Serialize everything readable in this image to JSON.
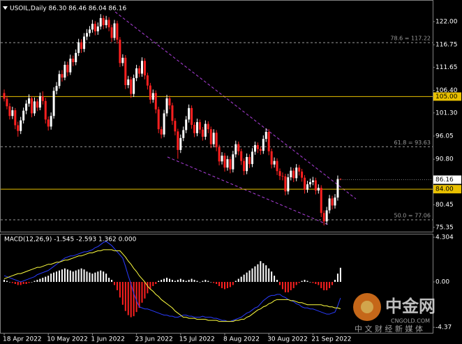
{
  "chart_data": [
    {
      "type": "candlestick",
      "header": "USOIL,Daily  86.30 86.46 86.04 86.16",
      "up_color": "#ffffff",
      "down_color": "#ff2020",
      "ylim": [
        74.21,
        126.11
      ],
      "yticks": [
        {
          "value": 122,
          "label": "122.00"
        },
        {
          "value": 116.75,
          "label": "116.75"
        },
        {
          "value": 111.65,
          "label": "111.65"
        },
        {
          "value": 106.4,
          "label": "106.40"
        },
        {
          "value": 101.3,
          "label": "101.30"
        },
        {
          "value": 96.05,
          "label": "96.05"
        },
        {
          "value": 90.8,
          "label": "90.80"
        },
        {
          "value": 80.45,
          "label": "80.45"
        },
        {
          "value": 75.35,
          "label": "75.35"
        }
      ],
      "levels": [
        {
          "value": 117.22,
          "label": "78.6 = 117.22",
          "style": "dashed",
          "color": "#9a9a9a"
        },
        {
          "value": 105,
          "label": "105.00",
          "style": "solid",
          "color": "#e8c000"
        },
        {
          "value": 93.63,
          "label": "61.8 = 93.63",
          "style": "dashed",
          "color": "#9a9a9a"
        },
        {
          "value": 84,
          "label": "84.00",
          "style": "solid",
          "color": "#e8c000"
        },
        {
          "value": 77.06,
          "label": "50.0 = 77.06",
          "style": "dashed",
          "color": "#9a9a9a"
        }
      ],
      "categories": [
        "18 Apr 2022",
        null,
        null,
        null,
        null,
        null,
        null,
        null,
        null,
        null,
        null,
        null,
        null,
        null,
        null,
        null,
        "10 May 2022",
        null,
        null,
        null,
        null,
        null,
        null,
        null,
        null,
        null,
        null,
        null,
        null,
        null,
        null,
        null,
        "1 Jun 2022",
        null,
        null,
        null,
        null,
        null,
        null,
        null,
        null,
        null,
        null,
        null,
        null,
        null,
        null,
        null,
        "23 Jun 2022",
        null,
        null,
        null,
        null,
        null,
        null,
        null,
        null,
        null,
        null,
        null,
        null,
        null,
        null,
        null,
        "15 Jul 2022",
        null,
        null,
        null,
        null,
        null,
        null,
        null,
        null,
        null,
        null,
        null,
        null,
        null,
        null,
        null,
        "8 Aug 2022",
        null,
        null,
        null,
        null,
        null,
        null,
        null,
        null,
        null,
        null,
        null,
        null,
        null,
        null,
        null,
        "30 Aug 2022",
        null,
        null,
        null,
        null,
        null,
        null,
        null,
        null,
        null,
        null,
        null,
        null,
        null,
        null,
        null,
        "21 Sep 2022",
        null,
        null,
        null,
        null,
        null,
        null,
        null,
        null,
        null,
        null
      ],
      "candles": [
        [
          105.8,
          106.6,
          103.9,
          104.5
        ],
        [
          104.5,
          105.2,
          102.1,
          102.8
        ],
        [
          102.8,
          103.5,
          99.8,
          100.6
        ],
        [
          100.6,
          102.7,
          99.9,
          101.9
        ],
        [
          101.9,
          102.4,
          97.6,
          98.5
        ],
        [
          98.5,
          99.3,
          95.9,
          97.2
        ],
        [
          97.2,
          100.4,
          96.5,
          99.6
        ],
        [
          99.6,
          102.5,
          98.9,
          101.8
        ],
        [
          101.8,
          104.2,
          101.0,
          103.4
        ],
        [
          103.4,
          105.5,
          102.7,
          104.6
        ],
        [
          104.6,
          105.1,
          100.3,
          101.2
        ],
        [
          101.2,
          104.8,
          100.6,
          103.9
        ],
        [
          103.9,
          104.5,
          101.7,
          102.5
        ],
        [
          102.5,
          105.9,
          101.9,
          105.1
        ],
        [
          105.1,
          106.2,
          103.2,
          104.0
        ],
        [
          104.0,
          104.7,
          98.9,
          99.8
        ],
        [
          99.8,
          100.5,
          97.3,
          98.2
        ],
        [
          98.2,
          101.4,
          97.5,
          100.6
        ],
        [
          100.6,
          107.1,
          100.0,
          106.3
        ],
        [
          106.3,
          108.3,
          105.5,
          107.4
        ],
        [
          107.4,
          110.9,
          106.8,
          110.1
        ],
        [
          110.1,
          111.0,
          108.4,
          109.3
        ],
        [
          109.3,
          113.0,
          108.7,
          112.2
        ],
        [
          112.2,
          112.9,
          109.6,
          110.5
        ],
        [
          110.5,
          114.5,
          109.9,
          113.6
        ],
        [
          113.6,
          114.3,
          111.9,
          112.8
        ],
        [
          112.8,
          115.7,
          112.1,
          114.9
        ],
        [
          114.9,
          118.1,
          114.2,
          117.3
        ],
        [
          117.3,
          118.0,
          114.9,
          115.8
        ],
        [
          115.8,
          119.4,
          115.1,
          118.6
        ],
        [
          118.6,
          120.3,
          117.8,
          119.4
        ],
        [
          119.4,
          121.0,
          118.6,
          120.2
        ],
        [
          120.2,
          122.4,
          119.5,
          121.5
        ],
        [
          121.5,
          122.1,
          118.9,
          119.8
        ],
        [
          119.8,
          121.8,
          119.0,
          120.9
        ],
        [
          120.9,
          123.7,
          120.2,
          122.8
        ],
        [
          122.8,
          123.4,
          120.3,
          121.2
        ],
        [
          121.2,
          123.3,
          120.5,
          122.4
        ],
        [
          122.4,
          123.0,
          119.8,
          120.7
        ],
        [
          120.7,
          121.3,
          117.4,
          118.3
        ],
        [
          118.3,
          122.4,
          117.7,
          121.6
        ],
        [
          121.6,
          122.2,
          117.0,
          117.9
        ],
        [
          117.9,
          118.5,
          111.7,
          112.6
        ],
        [
          112.6,
          114.6,
          111.9,
          113.8
        ],
        [
          113.8,
          114.4,
          106.7,
          107.6
        ],
        [
          107.6,
          109.7,
          106.9,
          108.9
        ],
        [
          108.9,
          109.5,
          104.7,
          105.6
        ],
        [
          105.6,
          110.0,
          104.9,
          109.2
        ],
        [
          109.2,
          112.2,
          108.5,
          111.4
        ],
        [
          111.4,
          112.0,
          109.4,
          110.2
        ],
        [
          110.2,
          113.9,
          109.5,
          113.1
        ],
        [
          113.1,
          113.7,
          108.9,
          109.8
        ],
        [
          109.8,
          110.4,
          106.6,
          107.5
        ],
        [
          107.5,
          108.1,
          103.4,
          104.3
        ],
        [
          104.3,
          106.6,
          103.6,
          105.8
        ],
        [
          105.8,
          106.4,
          101.2,
          102.1
        ],
        [
          102.1,
          102.7,
          96.7,
          97.6
        ],
        [
          97.6,
          98.2,
          95.5,
          96.4
        ],
        [
          96.4,
          102.0,
          95.8,
          101.2
        ],
        [
          101.2,
          105.4,
          100.5,
          104.6
        ],
        [
          104.6,
          105.2,
          102.1,
          103.0
        ],
        [
          103.0,
          103.6,
          98.6,
          99.5
        ],
        [
          99.5,
          100.1,
          96.2,
          97.1
        ],
        [
          97.1,
          97.7,
          90.9,
          92.9
        ],
        [
          92.9,
          96.4,
          92.2,
          95.6
        ],
        [
          95.6,
          98.2,
          94.9,
          97.4
        ],
        [
          97.4,
          100.6,
          96.7,
          99.8
        ],
        [
          99.8,
          103.2,
          99.1,
          102.4
        ],
        [
          102.4,
          103.0,
          97.7,
          98.6
        ],
        [
          98.6,
          99.2,
          95.8,
          96.7
        ],
        [
          96.7,
          100.0,
          96.0,
          99.2
        ],
        [
          99.2,
          99.8,
          96.6,
          97.5
        ],
        [
          97.5,
          98.1,
          95.0,
          95.9
        ],
        [
          95.9,
          99.6,
          95.2,
          98.8
        ],
        [
          98.8,
          99.4,
          96.7,
          97.6
        ],
        [
          97.6,
          98.2,
          93.3,
          94.2
        ],
        [
          94.2,
          97.6,
          93.5,
          96.8
        ],
        [
          96.8,
          97.4,
          92.6,
          93.5
        ],
        [
          93.5,
          94.1,
          89.4,
          90.3
        ],
        [
          90.3,
          92.4,
          89.6,
          91.6
        ],
        [
          91.6,
          92.2,
          88.0,
          88.9
        ],
        [
          88.9,
          91.6,
          88.2,
          90.8
        ],
        [
          90.8,
          91.4,
          87.6,
          88.5
        ],
        [
          88.5,
          92.7,
          87.8,
          91.9
        ],
        [
          91.9,
          95.0,
          91.2,
          94.2
        ],
        [
          94.2,
          94.8,
          91.7,
          92.6
        ],
        [
          92.6,
          93.2,
          89.5,
          90.4
        ],
        [
          90.4,
          91.0,
          87.2,
          88.1
        ],
        [
          88.1,
          92.1,
          87.4,
          91.3
        ],
        [
          91.3,
          91.9,
          88.8,
          89.7
        ],
        [
          89.7,
          93.3,
          89.0,
          92.5
        ],
        [
          92.5,
          94.8,
          91.8,
          94.0
        ],
        [
          94.0,
          94.6,
          92.2,
          93.1
        ],
        [
          93.1,
          93.7,
          91.8,
          92.7
        ],
        [
          92.7,
          96.2,
          92.0,
          95.4
        ],
        [
          95.4,
          97.8,
          94.7,
          97.0
        ],
        [
          97.0,
          97.6,
          91.7,
          92.6
        ],
        [
          92.6,
          93.2,
          88.7,
          89.6
        ],
        [
          89.6,
          91.2,
          88.9,
          90.4
        ],
        [
          90.4,
          91.0,
          87.2,
          88.1
        ],
        [
          88.1,
          88.7,
          86.1,
          87.0
        ],
        [
          87.0,
          87.8,
          86.0,
          86.9
        ],
        [
          86.9,
          87.5,
          82.6,
          83.5
        ],
        [
          83.5,
          87.5,
          82.8,
          86.7
        ],
        [
          86.7,
          89.0,
          86.0,
          88.2
        ],
        [
          88.2,
          88.8,
          85.6,
          86.5
        ],
        [
          86.5,
          89.7,
          85.8,
          88.9
        ],
        [
          88.9,
          89.5,
          87.1,
          88.0
        ],
        [
          88.0,
          88.6,
          85.7,
          86.6
        ],
        [
          86.6,
          87.2,
          83.0,
          83.9
        ],
        [
          83.9,
          85.9,
          83.2,
          85.1
        ],
        [
          85.1,
          86.4,
          84.4,
          85.6
        ],
        [
          85.6,
          86.8,
          84.9,
          86.0
        ],
        [
          86.0,
          86.6,
          82.8,
          83.7
        ],
        [
          83.7,
          85.1,
          83.0,
          84.3
        ],
        [
          84.3,
          84.9,
          77.7,
          78.6
        ],
        [
          78.6,
          79.2,
          75.8,
          76.7
        ],
        [
          76.7,
          80.0,
          76.0,
          79.2
        ],
        [
          79.2,
          82.7,
          78.5,
          81.9
        ],
        [
          81.9,
          82.5,
          79.4,
          80.3
        ],
        [
          80.3,
          82.9,
          79.6,
          82.1
        ],
        [
          82.1,
          87.1,
          81.4,
          86.3
        ],
        [
          86.3,
          86.46,
          86.04,
          86.16
        ]
      ]
    },
    {
      "type": "macd",
      "label": "MACD(12,26,9) -1.545 -2.593 1.362 0.000",
      "ylim": [
        -4.97,
        4.57
      ],
      "yticks": [
        4.304,
        {
          "value": 0,
          "label": "0.00"
        },
        -4.37
      ],
      "up_color": "#ffffff",
      "down_color": "#ff2020",
      "main_color": "#2a3cff",
      "signal_color": "#ffff40",
      "histogram": [
        0.2,
        0.1,
        0.0,
        -0.1,
        -0.2,
        -0.3,
        -0.3,
        -0.2,
        -0.2,
        -0.1,
        0.0,
        0.1,
        0.2,
        0.3,
        0.4,
        0.5,
        0.6,
        0.8,
        0.9,
        1.0,
        1.1,
        1.2,
        1.3,
        1.2,
        1.1,
        1.0,
        1.1,
        1.2,
        1.3,
        1.2,
        1.0,
        0.9,
        0.8,
        0.9,
        1.0,
        1.1,
        1.0,
        0.8,
        0.4,
        0.2,
        -0.3,
        -0.8,
        -1.5,
        -2.2,
        -2.8,
        -3.2,
        -3.4,
        -3.3,
        -2.9,
        -2.5,
        -2.0,
        -1.6,
        -1.1,
        -0.7,
        -0.4,
        -0.2,
        0.1,
        0.2,
        0.3,
        0.4,
        0.3,
        0.2,
        0.1,
        0.2,
        0.3,
        0.2,
        0.1,
        0.2,
        0.3,
        0.2,
        0.1,
        0.0,
        0.1,
        0.2,
        0.1,
        0.0,
        -0.1,
        -0.2,
        -0.4,
        -0.6,
        -0.7,
        -0.6,
        -0.5,
        -0.3,
        0.1,
        0.3,
        0.5,
        0.7,
        0.9,
        1.1,
        1.3,
        1.5,
        1.7,
        2.0,
        1.8,
        1.6,
        1.3,
        1.0,
        0.6,
        0.2,
        -0.3,
        -0.7,
        -1.0,
        -1.0,
        -0.8,
        -0.6,
        -0.3,
        -0.1,
        0.1,
        0.2,
        0.1,
        0.0,
        -0.1,
        -0.2,
        -0.3,
        -0.6,
        -0.8,
        -0.8,
        -0.6,
        -0.3,
        0.2,
        0.8,
        1.362
      ],
      "main": [
        0.6,
        0.5,
        0.4,
        0.3,
        0.2,
        0.1,
        0.0,
        0.1,
        0.2,
        0.3,
        0.4,
        0.5,
        0.7,
        0.8,
        0.9,
        1.0,
        1.1,
        1.3,
        1.5,
        1.7,
        1.9,
        2.1,
        2.3,
        2.4,
        2.5,
        2.5,
        2.6,
        2.7,
        2.8,
        2.9,
        2.9,
        3.0,
        3.1,
        3.3,
        3.4,
        3.6,
        3.8,
        3.9,
        3.7,
        3.5,
        3.2,
        2.9,
        2.6,
        2.3,
        1.5,
        0.6,
        -0.2,
        -1.1,
        -1.8,
        -2.4,
        -2.5,
        -2.6,
        -2.6,
        -2.7,
        -2.8,
        -2.9,
        -3.0,
        -3.1,
        -3.2,
        -3.2,
        -3.3,
        -3.3,
        -3.4,
        -3.4,
        -3.3,
        -3.2,
        -3.2,
        -3.3,
        -3.3,
        -3.4,
        -3.4,
        -3.4,
        -3.3,
        -3.4,
        -3.4,
        -3.4,
        -3.5,
        -3.5,
        -3.6,
        -3.7,
        -3.7,
        -3.8,
        -3.8,
        -3.7,
        -3.6,
        -3.5,
        -3.4,
        -3.2,
        -3.0,
        -2.9,
        -2.7,
        -2.5,
        -2.4,
        -2.1,
        -1.8,
        -1.6,
        -1.4,
        -1.3,
        -1.3,
        -1.2,
        -1.2,
        -1.4,
        -1.5,
        -1.7,
        -1.8,
        -1.9,
        -2.1,
        -2.2,
        -2.4,
        -2.5,
        -2.5,
        -2.6,
        -2.6,
        -2.7,
        -2.8,
        -2.9,
        -3.0,
        -3.1,
        -3.1,
        -3.0,
        -2.9,
        -2.3,
        -1.545
      ],
      "signal": [
        0.3,
        0.4,
        0.5,
        0.6,
        0.7,
        0.8,
        0.8,
        0.9,
        1.0,
        1.1,
        1.2,
        1.3,
        1.4,
        1.4,
        1.5,
        1.6,
        1.7,
        1.7,
        1.8,
        1.9,
        1.9,
        2.0,
        2.1,
        2.1,
        2.2,
        2.3,
        2.4,
        2.5,
        2.5,
        2.6,
        2.7,
        2.8,
        2.8,
        2.9,
        3.0,
        3.0,
        3.1,
        3.1,
        3.1,
        3.1,
        3.0,
        3.0,
        3.0,
        2.7,
        2.4,
        2.0,
        1.7,
        1.3,
        1.0,
        0.6,
        0.3,
        0.0,
        -0.4,
        -0.7,
        -0.9,
        -1.2,
        -1.4,
        -1.7,
        -1.9,
        -2.1,
        -2.3,
        -2.5,
        -2.8,
        -3.0,
        -3.2,
        -3.4,
        -3.4,
        -3.5,
        -3.5,
        -3.5,
        -3.6,
        -3.6,
        -3.6,
        -3.6,
        -3.7,
        -3.7,
        -3.7,
        -3.7,
        -3.8,
        -3.8,
        -3.8,
        -3.8,
        -3.8,
        -3.8,
        -3.7,
        -3.7,
        -3.6,
        -3.6,
        -3.4,
        -3.3,
        -3.1,
        -2.9,
        -2.7,
        -2.6,
        -2.4,
        -2.3,
        -2.1,
        -2.0,
        -1.8,
        -1.7,
        -1.7,
        -1.7,
        -1.7,
        -1.7,
        -1.8,
        -1.8,
        -1.9,
        -2.0,
        -2.0,
        -2.1,
        -2.2,
        -2.2,
        -2.2,
        -2.2,
        -2.2,
        -2.2,
        -2.3,
        -2.3,
        -2.4,
        -2.4,
        -2.5,
        -2.5,
        -2.593
      ]
    }
  ],
  "watermark": {
    "name": "中金网",
    "site": "CNGOLD.COM",
    "slogan": "中 文 财 经 新 媒 体"
  }
}
